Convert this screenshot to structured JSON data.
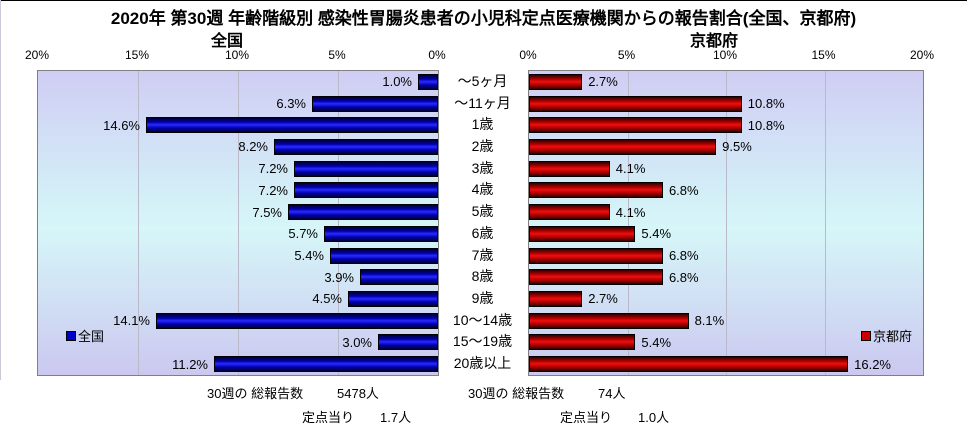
{
  "title": "2020年 第30週 年齢階級別 感染性胃腸炎患者の小児科定点医療機関からの報告割合(全国、京都府)",
  "colors": {
    "national_bar": "#0000cc",
    "kyoto_bar": "#cc0000",
    "plot_bg_top": "#d0cdf4",
    "plot_bg_middle": "#d6f6f8",
    "plot_bg_bottom": "#cbc8f0",
    "gridline": "#b9b9c9",
    "plot_border": "#808080"
  },
  "chart_data": [
    {
      "type": "bar",
      "orientation": "horizontal",
      "title": "全国",
      "legend_label": "全国",
      "series_color": "#0000cc",
      "axis_reversed": true,
      "xlim": [
        0,
        20
      ],
      "xticks": [
        "20%",
        "15%",
        "10%",
        "5%",
        "0%"
      ],
      "categories": [
        "～5ヶ月",
        "～11ヶ月",
        "1歳",
        "2歳",
        "3歳",
        "4歳",
        "5歳",
        "6歳",
        "7歳",
        "8歳",
        "9歳",
        "10～14歳",
        "15～19歳",
        "20歳以上"
      ],
      "values": [
        1.0,
        6.3,
        14.6,
        8.2,
        7.2,
        7.2,
        7.5,
        5.7,
        5.4,
        3.9,
        4.5,
        14.1,
        3.0,
        11.2
      ],
      "value_labels": [
        "1.0%",
        "6.3%",
        "14.6%",
        "8.2%",
        "7.2%",
        "7.2%",
        "7.5%",
        "5.7%",
        "5.4%",
        "3.9%",
        "4.5%",
        "14.1%",
        "3.0%",
        "11.2%"
      ]
    },
    {
      "type": "bar",
      "orientation": "horizontal",
      "title": "京都府",
      "legend_label": "京都府",
      "series_color": "#cc0000",
      "axis_reversed": false,
      "xlim": [
        0,
        20
      ],
      "xticks": [
        "0%",
        "5%",
        "10%",
        "15%",
        "20%"
      ],
      "categories": [
        "～5ヶ月",
        "～11ヶ月",
        "1歳",
        "2歳",
        "3歳",
        "4歳",
        "5歳",
        "6歳",
        "7歳",
        "8歳",
        "9歳",
        "10～14歳",
        "15～19歳",
        "20歳以上"
      ],
      "values": [
        2.7,
        10.8,
        10.8,
        9.5,
        4.1,
        6.8,
        4.1,
        5.4,
        6.8,
        6.8,
        2.7,
        8.1,
        5.4,
        16.2
      ],
      "value_labels": [
        "2.7%",
        "10.8%",
        "10.8%",
        "9.5%",
        "4.1%",
        "6.8%",
        "4.1%",
        "5.4%",
        "6.8%",
        "6.8%",
        "2.7%",
        "8.1%",
        "5.4%",
        "16.2%"
      ]
    }
  ],
  "footer": {
    "national": {
      "total_label": "30週の 総報告数",
      "total_value": "5478人",
      "per_site_label": "定点当り",
      "per_site_value": "1.7人"
    },
    "kyoto": {
      "total_label": "30週の 総報告数",
      "total_value": "74人",
      "per_site_label": "定点当り",
      "per_site_value": "1.0人"
    }
  }
}
